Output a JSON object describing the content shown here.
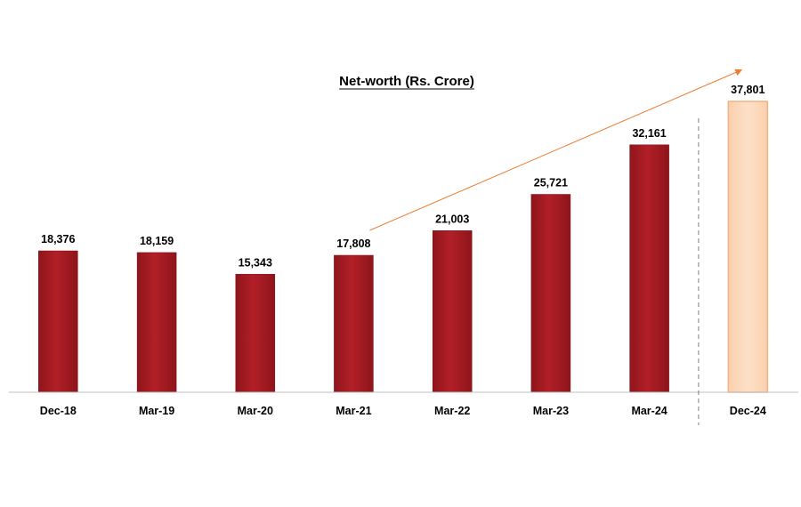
{
  "chart_data": {
    "type": "bar",
    "title": "Net-worth (Rs. Crore)",
    "categories": [
      "Dec-18",
      "Mar-19",
      "Mar-20",
      "Mar-21",
      "Mar-22",
      "Mar-23",
      "Mar-24",
      "Dec-24"
    ],
    "values": [
      18376,
      18159,
      15343,
      17808,
      21003,
      25721,
      32161,
      37801
    ],
    "data_labels": [
      "18,376",
      "18,159",
      "15,343",
      "17,808",
      "21,003",
      "25,721",
      "32,161",
      "37,801"
    ],
    "ylim": [
      0,
      40000
    ],
    "grid": false,
    "legend": "none",
    "bar_colors": [
      "#A61C24",
      "#A61C24",
      "#A61C24",
      "#A61C24",
      "#A61C24",
      "#A61C24",
      "#A61C24",
      "#FBD5B5"
    ],
    "highlight_border_color": "#F4B183",
    "trend_arrow": {
      "from_category": "Mar-21",
      "to_category": "Dec-24",
      "color": "#ED7D31"
    },
    "separator_before_category": "Dec-24"
  }
}
